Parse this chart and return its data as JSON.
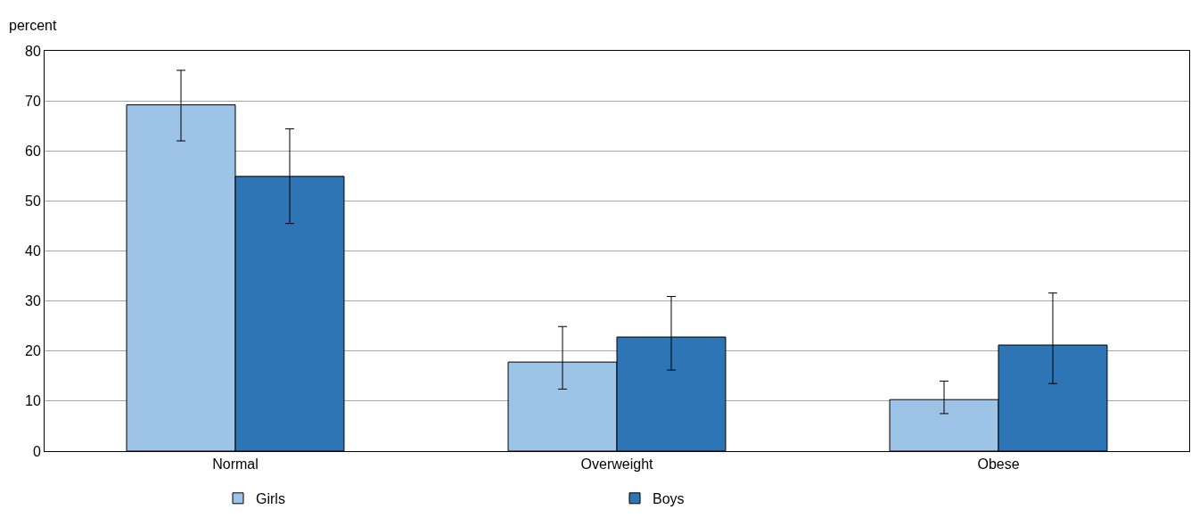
{
  "chart_data": {
    "type": "bar",
    "ylabel": "percent",
    "categories": [
      "Normal",
      "Overweight",
      "Obese"
    ],
    "series": [
      {
        "name": "Girls",
        "color": "#9dc3e6",
        "values": [
          69.2,
          17.8,
          10.3
        ],
        "errors": [
          [
            62.0,
            76.1
          ],
          [
            12.4,
            24.9
          ],
          [
            7.5,
            14.0
          ]
        ]
      },
      {
        "name": "Boys",
        "color": "#2e75b6",
        "values": [
          54.9,
          22.8,
          21.2
        ],
        "errors": [
          [
            45.5,
            64.4
          ],
          [
            16.2,
            30.9
          ],
          [
            13.5,
            31.6
          ]
        ]
      }
    ],
    "ylim": [
      0,
      80
    ],
    "yticks": [
      0,
      10,
      20,
      30,
      40,
      50,
      60,
      70,
      80
    ],
    "grid": "y",
    "legend": "bottom"
  }
}
